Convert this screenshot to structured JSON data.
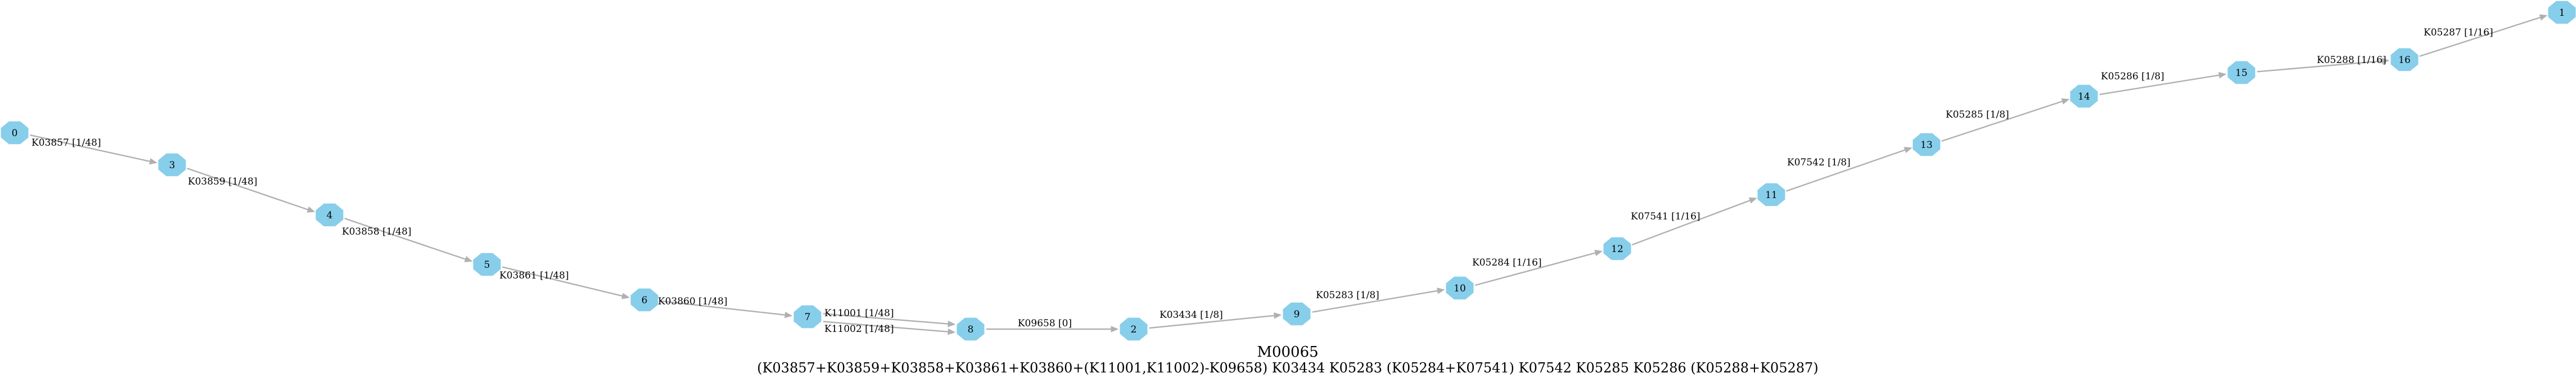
{
  "diagram": {
    "title": "M00065",
    "definition": "(K03857+K03859+K03858+K03861+K03860+(K11001,K11002)-K09658) K03434 K05283 (K05284+K07541) K07542 K05285 K05286 (K05288+K05287)",
    "colors": {
      "node_fill": "#87CEEB",
      "edge": "#b0b0b0",
      "text": "#000000"
    },
    "nodes": [
      {
        "id": "0",
        "label": "0"
      },
      {
        "id": "3",
        "label": "3"
      },
      {
        "id": "4",
        "label": "4"
      },
      {
        "id": "5",
        "label": "5"
      },
      {
        "id": "6",
        "label": "6"
      },
      {
        "id": "7",
        "label": "7"
      },
      {
        "id": "8",
        "label": "8"
      },
      {
        "id": "2",
        "label": "2"
      },
      {
        "id": "9",
        "label": "9"
      },
      {
        "id": "10",
        "label": "10"
      },
      {
        "id": "12",
        "label": "12"
      },
      {
        "id": "11",
        "label": "11"
      },
      {
        "id": "13",
        "label": "13"
      },
      {
        "id": "14",
        "label": "14"
      },
      {
        "id": "15",
        "label": "15"
      },
      {
        "id": "16",
        "label": "16"
      },
      {
        "id": "1",
        "label": "1"
      }
    ],
    "edges": [
      {
        "from": "0",
        "to": "3",
        "label": "K03857 [1/48]"
      },
      {
        "from": "3",
        "to": "4",
        "label": "K03859 [1/48]"
      },
      {
        "from": "4",
        "to": "5",
        "label": "K03858 [1/48]"
      },
      {
        "from": "5",
        "to": "6",
        "label": "K03861 [1/48]"
      },
      {
        "from": "6",
        "to": "7",
        "label": "K03860 [1/48]"
      },
      {
        "from": "7",
        "to": "8",
        "label": "K11001 [1/48]"
      },
      {
        "from": "7",
        "to": "8",
        "label": "K11002 [1/48]"
      },
      {
        "from": "8",
        "to": "2",
        "label": "K09658 [0]"
      },
      {
        "from": "2",
        "to": "9",
        "label": "K03434 [1/8]"
      },
      {
        "from": "9",
        "to": "10",
        "label": "K05283 [1/8]"
      },
      {
        "from": "10",
        "to": "12",
        "label": "K05284 [1/16]"
      },
      {
        "from": "12",
        "to": "11",
        "label": "K07541 [1/16]"
      },
      {
        "from": "11",
        "to": "13",
        "label": "K07542 [1/8]"
      },
      {
        "from": "13",
        "to": "14",
        "label": "K05285 [1/8]"
      },
      {
        "from": "14",
        "to": "15",
        "label": "K05286 [1/8]"
      },
      {
        "from": "15",
        "to": "16",
        "label": "K05288 [1/16]"
      },
      {
        "from": "16",
        "to": "1",
        "label": "K05287 [1/16]"
      }
    ]
  }
}
